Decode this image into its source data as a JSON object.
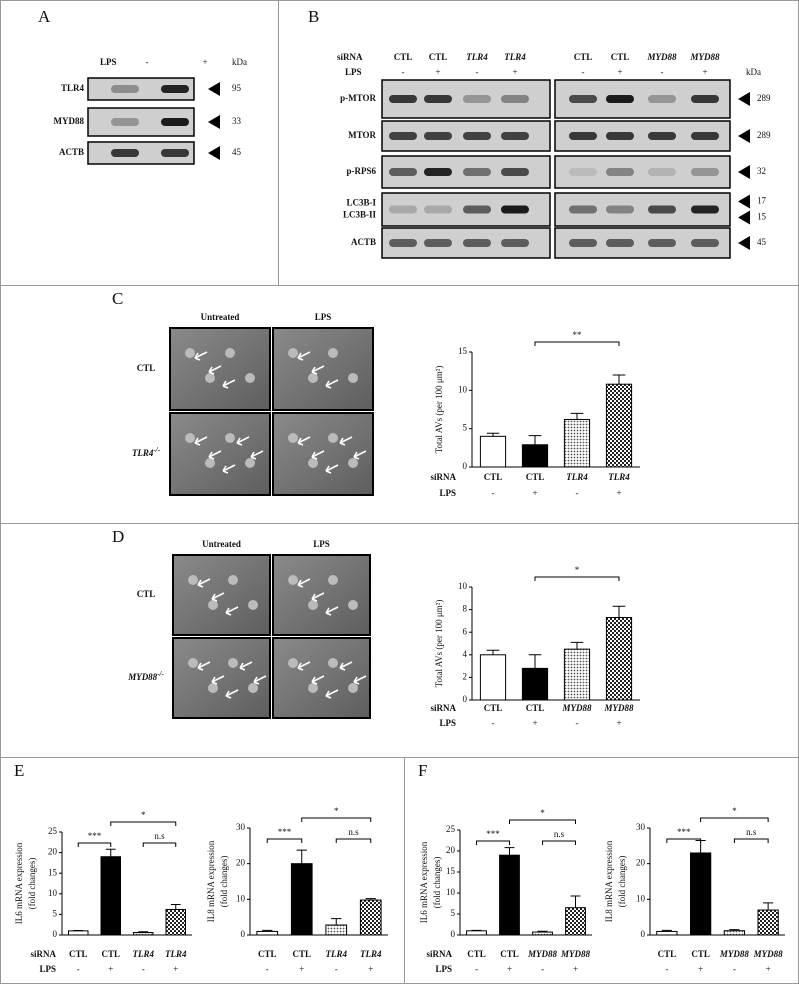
{
  "panel_labels": [
    "A",
    "B",
    "C",
    "D",
    "E",
    "F"
  ],
  "panel_a": {
    "lps_label": "LPS",
    "lps": [
      "-",
      "+"
    ],
    "kda_label": "kDa",
    "rows": [
      {
        "label": "TLR4",
        "kda": 95
      },
      {
        "label": "MYD88",
        "kda": 33
      },
      {
        "label": "ACTB",
        "kda": 45
      }
    ]
  },
  "panel_b": {
    "sirna_label": "siRNA",
    "lps_label": "LPS",
    "kda_label": "kDa",
    "sirna": [
      "CTL",
      "CTL",
      "TLR4",
      "TLR4",
      "CTL",
      "CTL",
      "MYD88",
      "MYD88"
    ],
    "lps": [
      "-",
      "+",
      "-",
      "+",
      "-",
      "+",
      "-",
      "+"
    ],
    "rows": [
      {
        "label": "p-MTOR",
        "kda": 289
      },
      {
        "label": "MTOR",
        "kda": 289
      },
      {
        "label": "p-RPS6",
        "kda": 32
      },
      {
        "labels": [
          "LC3B-I",
          "LC3B-II"
        ],
        "kda": [
          17,
          15
        ]
      },
      {
        "label": "ACTB",
        "kda": 45
      }
    ]
  },
  "panel_c_images": {
    "columns": [
      "Untreated",
      "LPS"
    ],
    "rows": [
      {
        "text": "CTL"
      },
      {
        "text": "TLR4",
        "sup": "-/-"
      }
    ]
  },
  "panel_d_images": {
    "columns": [
      "Untreated",
      "LPS"
    ],
    "rows": [
      {
        "text": "CTL"
      },
      {
        "text": "MYD88",
        "sup": "-/-"
      }
    ]
  },
  "chart_data": [
    {
      "type": "bar",
      "ylabel": [
        "Total AVs (per 100 μm²)"
      ],
      "row_labels": [
        "siRNA",
        "LPS"
      ],
      "categories": [
        "CTL",
        "CTL",
        "TLR4",
        "TLR4"
      ],
      "lps": [
        "-",
        "+",
        "-",
        "+"
      ],
      "values": [
        4.0,
        2.9,
        6.2,
        10.8
      ],
      "error": [
        0.4,
        1.2,
        0.8,
        1.2
      ],
      "fills": [
        "white",
        "black",
        "dots",
        "checks"
      ],
      "ylim": [
        0,
        15
      ],
      "yticks": [
        0,
        5,
        10,
        15
      ],
      "brackets": [
        {
          "from": 1,
          "to": 3,
          "label": "**"
        }
      ]
    },
    {
      "type": "bar",
      "ylabel": [
        "Total AVs (per 100 μm²)"
      ],
      "row_labels": [
        "siRNA",
        "LPS"
      ],
      "categories": [
        "CTL",
        "CTL",
        "MYD88",
        "MYD88"
      ],
      "lps": [
        "-",
        "+",
        "-",
        "+"
      ],
      "values": [
        4.0,
        2.8,
        4.5,
        7.3
      ],
      "error": [
        0.4,
        1.2,
        0.6,
        1.0
      ],
      "fills": [
        "white",
        "black",
        "dots",
        "checks"
      ],
      "ylim": [
        0,
        10
      ],
      "yticks": [
        0,
        2,
        4,
        6,
        8,
        10
      ],
      "brackets": [
        {
          "from": 1,
          "to": 3,
          "label": "*"
        }
      ]
    },
    {
      "type": "bar",
      "ylabel": [
        "IL6 mRNA expression",
        "(fold changes)"
      ],
      "row_labels": [
        "siRNA",
        "LPS"
      ],
      "categories": [
        "CTL",
        "CTL",
        "TLR4",
        "TLR4"
      ],
      "lps": [
        "-",
        "+",
        "-",
        "+"
      ],
      "values": [
        1.0,
        19.0,
        0.6,
        6.2
      ],
      "error": [
        0.1,
        1.8,
        0.2,
        1.2
      ],
      "fills": [
        "white",
        "black",
        "dots",
        "checks"
      ],
      "ylim": [
        0,
        25
      ],
      "yticks": [
        0,
        5,
        10,
        15,
        20,
        25
      ],
      "brackets": [
        {
          "from": 0,
          "to": 1,
          "label": "***"
        },
        {
          "from": 2,
          "to": 3,
          "label": "n.s"
        },
        {
          "from": 1,
          "to": 3,
          "label": "*"
        }
      ]
    },
    {
      "type": "bar",
      "ylabel": [
        "IL8 mRNA expression",
        "(fold changes)"
      ],
      "categories": [
        "CTL",
        "CTL",
        "TLR4",
        "TLR4"
      ],
      "lps": [
        "-",
        "+",
        "-",
        "+"
      ],
      "values": [
        1.0,
        20.0,
        2.8,
        9.8
      ],
      "error": [
        0.3,
        3.8,
        1.8,
        0.4
      ],
      "fills": [
        "white",
        "black",
        "dots",
        "checks"
      ],
      "ylim": [
        0,
        30
      ],
      "yticks": [
        0,
        10,
        20,
        30
      ],
      "brackets": [
        {
          "from": 0,
          "to": 1,
          "label": "***"
        },
        {
          "from": 2,
          "to": 3,
          "label": "n.s"
        },
        {
          "from": 1,
          "to": 3,
          "label": "*"
        }
      ]
    },
    {
      "type": "bar",
      "ylabel": [
        "IL6 mRNA expression",
        "(fold changes)"
      ],
      "row_labels": [
        "siRNA",
        "LPS"
      ],
      "categories": [
        "CTL",
        "CTL",
        "MYD88",
        "MYD88"
      ],
      "lps": [
        "-",
        "+",
        "-",
        "+"
      ],
      "values": [
        1.0,
        19.0,
        0.7,
        6.5
      ],
      "error": [
        0.1,
        1.8,
        0.2,
        2.8
      ],
      "fills": [
        "white",
        "black",
        "dots",
        "checks"
      ],
      "ylim": [
        0,
        25
      ],
      "yticks": [
        0,
        5,
        10,
        15,
        20,
        25
      ],
      "brackets": [
        {
          "from": 0,
          "to": 1,
          "label": "***"
        },
        {
          "from": 2,
          "to": 3,
          "label": "n.s"
        },
        {
          "from": 1,
          "to": 3,
          "label": "*"
        }
      ]
    },
    {
      "type": "bar",
      "ylabel": [
        "IL8 mRNA expression",
        "(fold changes)"
      ],
      "categories": [
        "CTL",
        "CTL",
        "MYD88",
        "MYD88"
      ],
      "lps": [
        "-",
        "+",
        "-",
        "+"
      ],
      "values": [
        1.0,
        23.0,
        1.2,
        7.0
      ],
      "error": [
        0.3,
        3.5,
        0.3,
        2.0
      ],
      "fills": [
        "white",
        "black",
        "dots",
        "checks"
      ],
      "ylim": [
        0,
        30
      ],
      "yticks": [
        0,
        10,
        20,
        30
      ],
      "brackets": [
        {
          "from": 0,
          "to": 1,
          "label": "***"
        },
        {
          "from": 2,
          "to": 3,
          "label": "n.s"
        },
        {
          "from": 1,
          "to": 3,
          "label": "*"
        }
      ]
    }
  ]
}
